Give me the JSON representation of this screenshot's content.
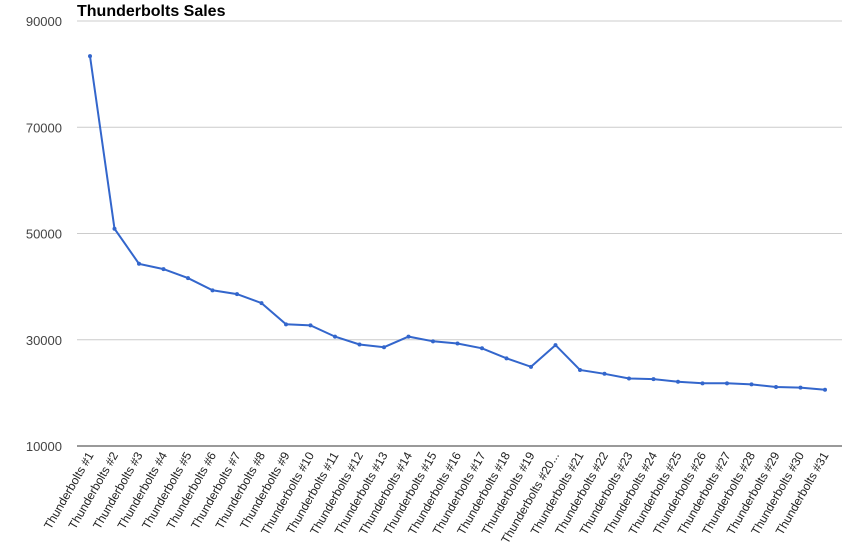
{
  "chart_data": {
    "type": "line",
    "title": "Thunderbolts Sales",
    "xlabel": "",
    "ylabel": "",
    "ylim": [
      10000,
      90000
    ],
    "yticks": [
      "90000",
      "70000",
      "50000",
      "30000",
      "10000"
    ],
    "yticks_values": [
      90000,
      70000,
      50000,
      30000,
      10000
    ],
    "grid": true,
    "categories": [
      "Thunderbolts #1",
      "Thunderbolts #2",
      "Thunderbolts #3",
      "Thunderbolts #4",
      "Thunderbolts #5",
      "Thunderbolts #6",
      "Thunderbolts #7",
      "Thunderbolts #8",
      "Thunderbolts #9",
      "Thunderbolts #10",
      "Thunderbolts #11",
      "Thunderbolts #12",
      "Thunderbolts #13",
      "Thunderbolts #14",
      "Thunderbolts #15",
      "Thunderbolts #16",
      "Thunderbolts #17",
      "Thunderbolts #18",
      "Thunderbolts #19",
      "Thunderbolts #20...",
      "Thunderbolts #21",
      "Thunderbolts #22",
      "Thunderbolts #23",
      "Thunderbolts #24",
      "Thunderbolts #25",
      "Thunderbolts #26",
      "Thunderbolts #27",
      "Thunderbolts #28",
      "Thunderbolts #29",
      "Thunderbolts #30",
      "Thunderbolts #31"
    ],
    "values": [
      83400,
      50900,
      44300,
      43300,
      41600,
      39300,
      38600,
      36900,
      32900,
      32700,
      30600,
      29100,
      28600,
      30600,
      29700,
      29300,
      28400,
      26500,
      24900,
      29000,
      24300,
      23600,
      22700,
      22600,
      22100,
      21800,
      21800,
      21600,
      21100,
      21000,
      20600
    ],
    "line_color": "#3366cc",
    "grid_color": "#cccccc"
  }
}
